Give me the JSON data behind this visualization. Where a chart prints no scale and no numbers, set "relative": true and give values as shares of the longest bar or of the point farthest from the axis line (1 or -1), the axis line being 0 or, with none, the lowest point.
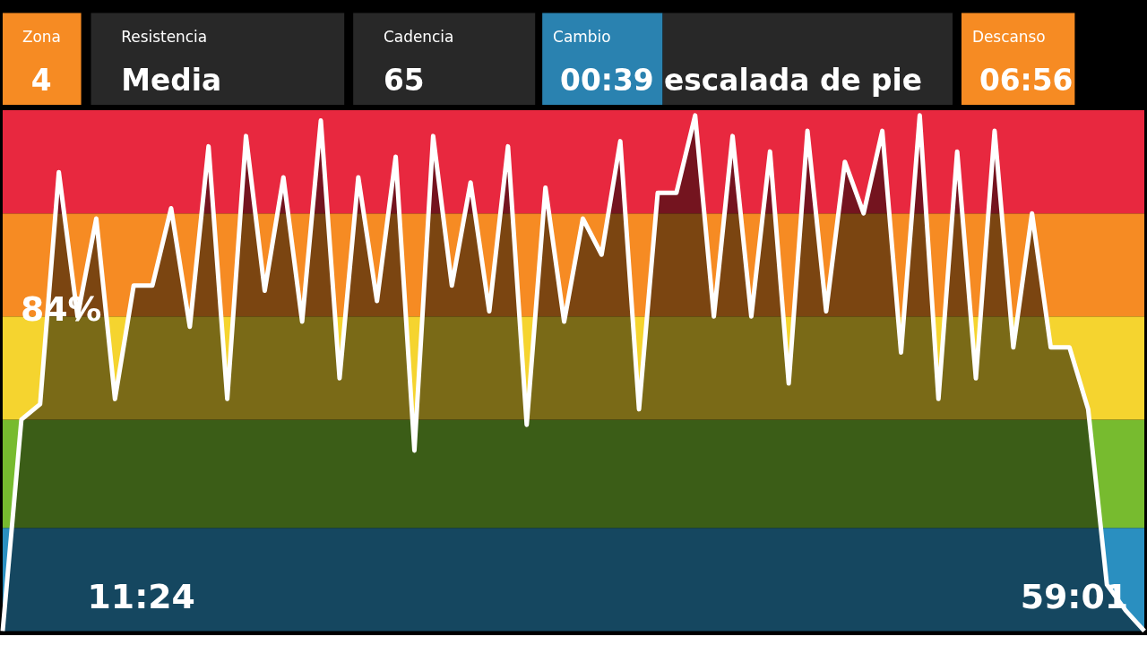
{
  "chart_data": [
    {
      "type": "other",
      "annotations": [
        "Zona",
        "4",
        "Resistencia",
        "Media",
        "Cadencia",
        "65",
        "Cambio",
        "00:39 escalada de pie",
        "Descanso",
        "06:56"
      ],
      "colors": [
        "#f68b23",
        "#282828",
        "#282828",
        "#2a82b0",
        "#f68b23"
      ]
    },
    {
      "type": "area",
      "relative": true,
      "marker": "none",
      "line_style": "solid",
      "legend": false,
      "categories": [
        null,
        null,
        null,
        null,
        null,
        null,
        null,
        null,
        null,
        null,
        null,
        null,
        null,
        null,
        null,
        null,
        null,
        null,
        null,
        null,
        null,
        null,
        null,
        null,
        null,
        null,
        null,
        null,
        null,
        null,
        null,
        null,
        null,
        null,
        null,
        null,
        null,
        null,
        null,
        null,
        null,
        null,
        null,
        null,
        null,
        null,
        null,
        null,
        null,
        null,
        null,
        null,
        null,
        null,
        null,
        null,
        null,
        null,
        null,
        null,
        null,
        null
      ],
      "series": [
        {
          "color": "#ffffff",
          "values": [
            0,
            0.41,
            0.44,
            0.89,
            0.61,
            0.8,
            0.45,
            0.67,
            0.67,
            0.82,
            0.59,
            0.94,
            0.45,
            0.96,
            0.66,
            0.88,
            0.6,
            0.99,
            0.49,
            0.88,
            0.64,
            0.92,
            0.35,
            0.96,
            0.67,
            0.87,
            0.62,
            0.94,
            0.4,
            0.86,
            0.6,
            0.8,
            0.73,
            0.95,
            0.43,
            0.85,
            0.85,
            1,
            0.61,
            0.96,
            0.61,
            0.93,
            0.48,
            0.97,
            0.62,
            0.91,
            0.81,
            0.97,
            0.54,
            1,
            0.45,
            0.93,
            0.49,
            0.97,
            0.55,
            0.81,
            0.55,
            0.55,
            0.43,
            0.09,
            0.04,
            0
          ]
        }
      ],
      "bands": [
        {
          "axis": "y",
          "from": 0,
          "to": 0.2,
          "color": "#2a8fc0"
        },
        {
          "axis": "y",
          "from": 0.2,
          "to": 0.41,
          "color": "#77bb2f"
        },
        {
          "axis": "y",
          "from": 0.41,
          "to": 0.61,
          "color": "#f5d42f"
        },
        {
          "axis": "y",
          "from": 0.61,
          "to": 0.81,
          "color": "#f68b23"
        },
        {
          "axis": "y",
          "from": 0.81,
          "to": 1.01,
          "color": "#e8283f"
        }
      ],
      "annotations": [
        "84%",
        "11:24",
        "59:01"
      ]
    }
  ]
}
